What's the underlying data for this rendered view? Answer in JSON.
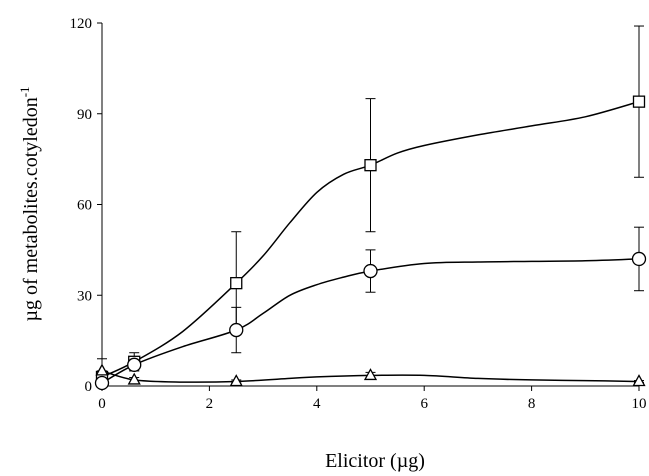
{
  "chart_data": {
    "type": "line",
    "xlabel": "Elicitor (µg)",
    "ylabel": "µg of metabolites.cotyledon-1",
    "ylabel_base": "µg of metabolites.cotyledon",
    "ylabel_superscript": "-1",
    "xlim": [
      0,
      10
    ],
    "ylim": [
      0,
      120
    ],
    "x_ticks": [
      0,
      2,
      4,
      6,
      8,
      10
    ],
    "y_ticks": [
      0,
      30,
      60,
      90,
      120
    ],
    "grid": false,
    "series": [
      {
        "marker": "square",
        "x": [
          0,
          0.6,
          2.5,
          5,
          10
        ],
        "y": [
          3,
          8,
          34,
          73,
          94
        ],
        "err": [
          2,
          3,
          17,
          22,
          25
        ],
        "curve": [
          [
            0,
            3
          ],
          [
            0.6,
            8
          ],
          [
            1.5,
            18
          ],
          [
            2.5,
            34
          ],
          [
            3,
            43
          ],
          [
            3.5,
            54
          ],
          [
            4,
            64
          ],
          [
            4.5,
            70
          ],
          [
            5,
            73
          ],
          [
            5.5,
            77
          ],
          [
            6,
            79.5
          ],
          [
            7,
            83
          ],
          [
            8,
            86
          ],
          [
            9,
            89
          ],
          [
            10,
            94
          ]
        ]
      },
      {
        "marker": "circle",
        "x": [
          0,
          0.6,
          2.5,
          5,
          10
        ],
        "y": [
          1,
          7,
          18.5,
          38,
          42
        ],
        "err": [
          1,
          2,
          7.5,
          7,
          10.5
        ],
        "curve": [
          [
            0,
            1
          ],
          [
            0.6,
            7
          ],
          [
            1.5,
            13
          ],
          [
            2.5,
            18.5
          ],
          [
            3,
            24
          ],
          [
            3.5,
            30
          ],
          [
            4,
            33.5
          ],
          [
            4.5,
            36
          ],
          [
            5,
            38
          ],
          [
            6,
            40.5
          ],
          [
            7,
            41
          ],
          [
            8,
            41.2
          ],
          [
            9,
            41.4
          ],
          [
            10,
            42
          ]
        ]
      },
      {
        "marker": "triangle",
        "x": [
          0,
          0.6,
          2.5,
          5,
          10
        ],
        "y": [
          5,
          2,
          1.5,
          3.5,
          1.5
        ],
        "err": [
          4,
          0.8,
          0.5,
          1,
          0.3
        ],
        "curve": [
          [
            0,
            5
          ],
          [
            0.6,
            2
          ],
          [
            1.5,
            1.3
          ],
          [
            2.5,
            1.5
          ],
          [
            3.5,
            2.5
          ],
          [
            4,
            3
          ],
          [
            5,
            3.5
          ],
          [
            6,
            3.5
          ],
          [
            7,
            2.5
          ],
          [
            8,
            2
          ],
          [
            9,
            1.8
          ],
          [
            10,
            1.5
          ]
        ]
      }
    ]
  }
}
